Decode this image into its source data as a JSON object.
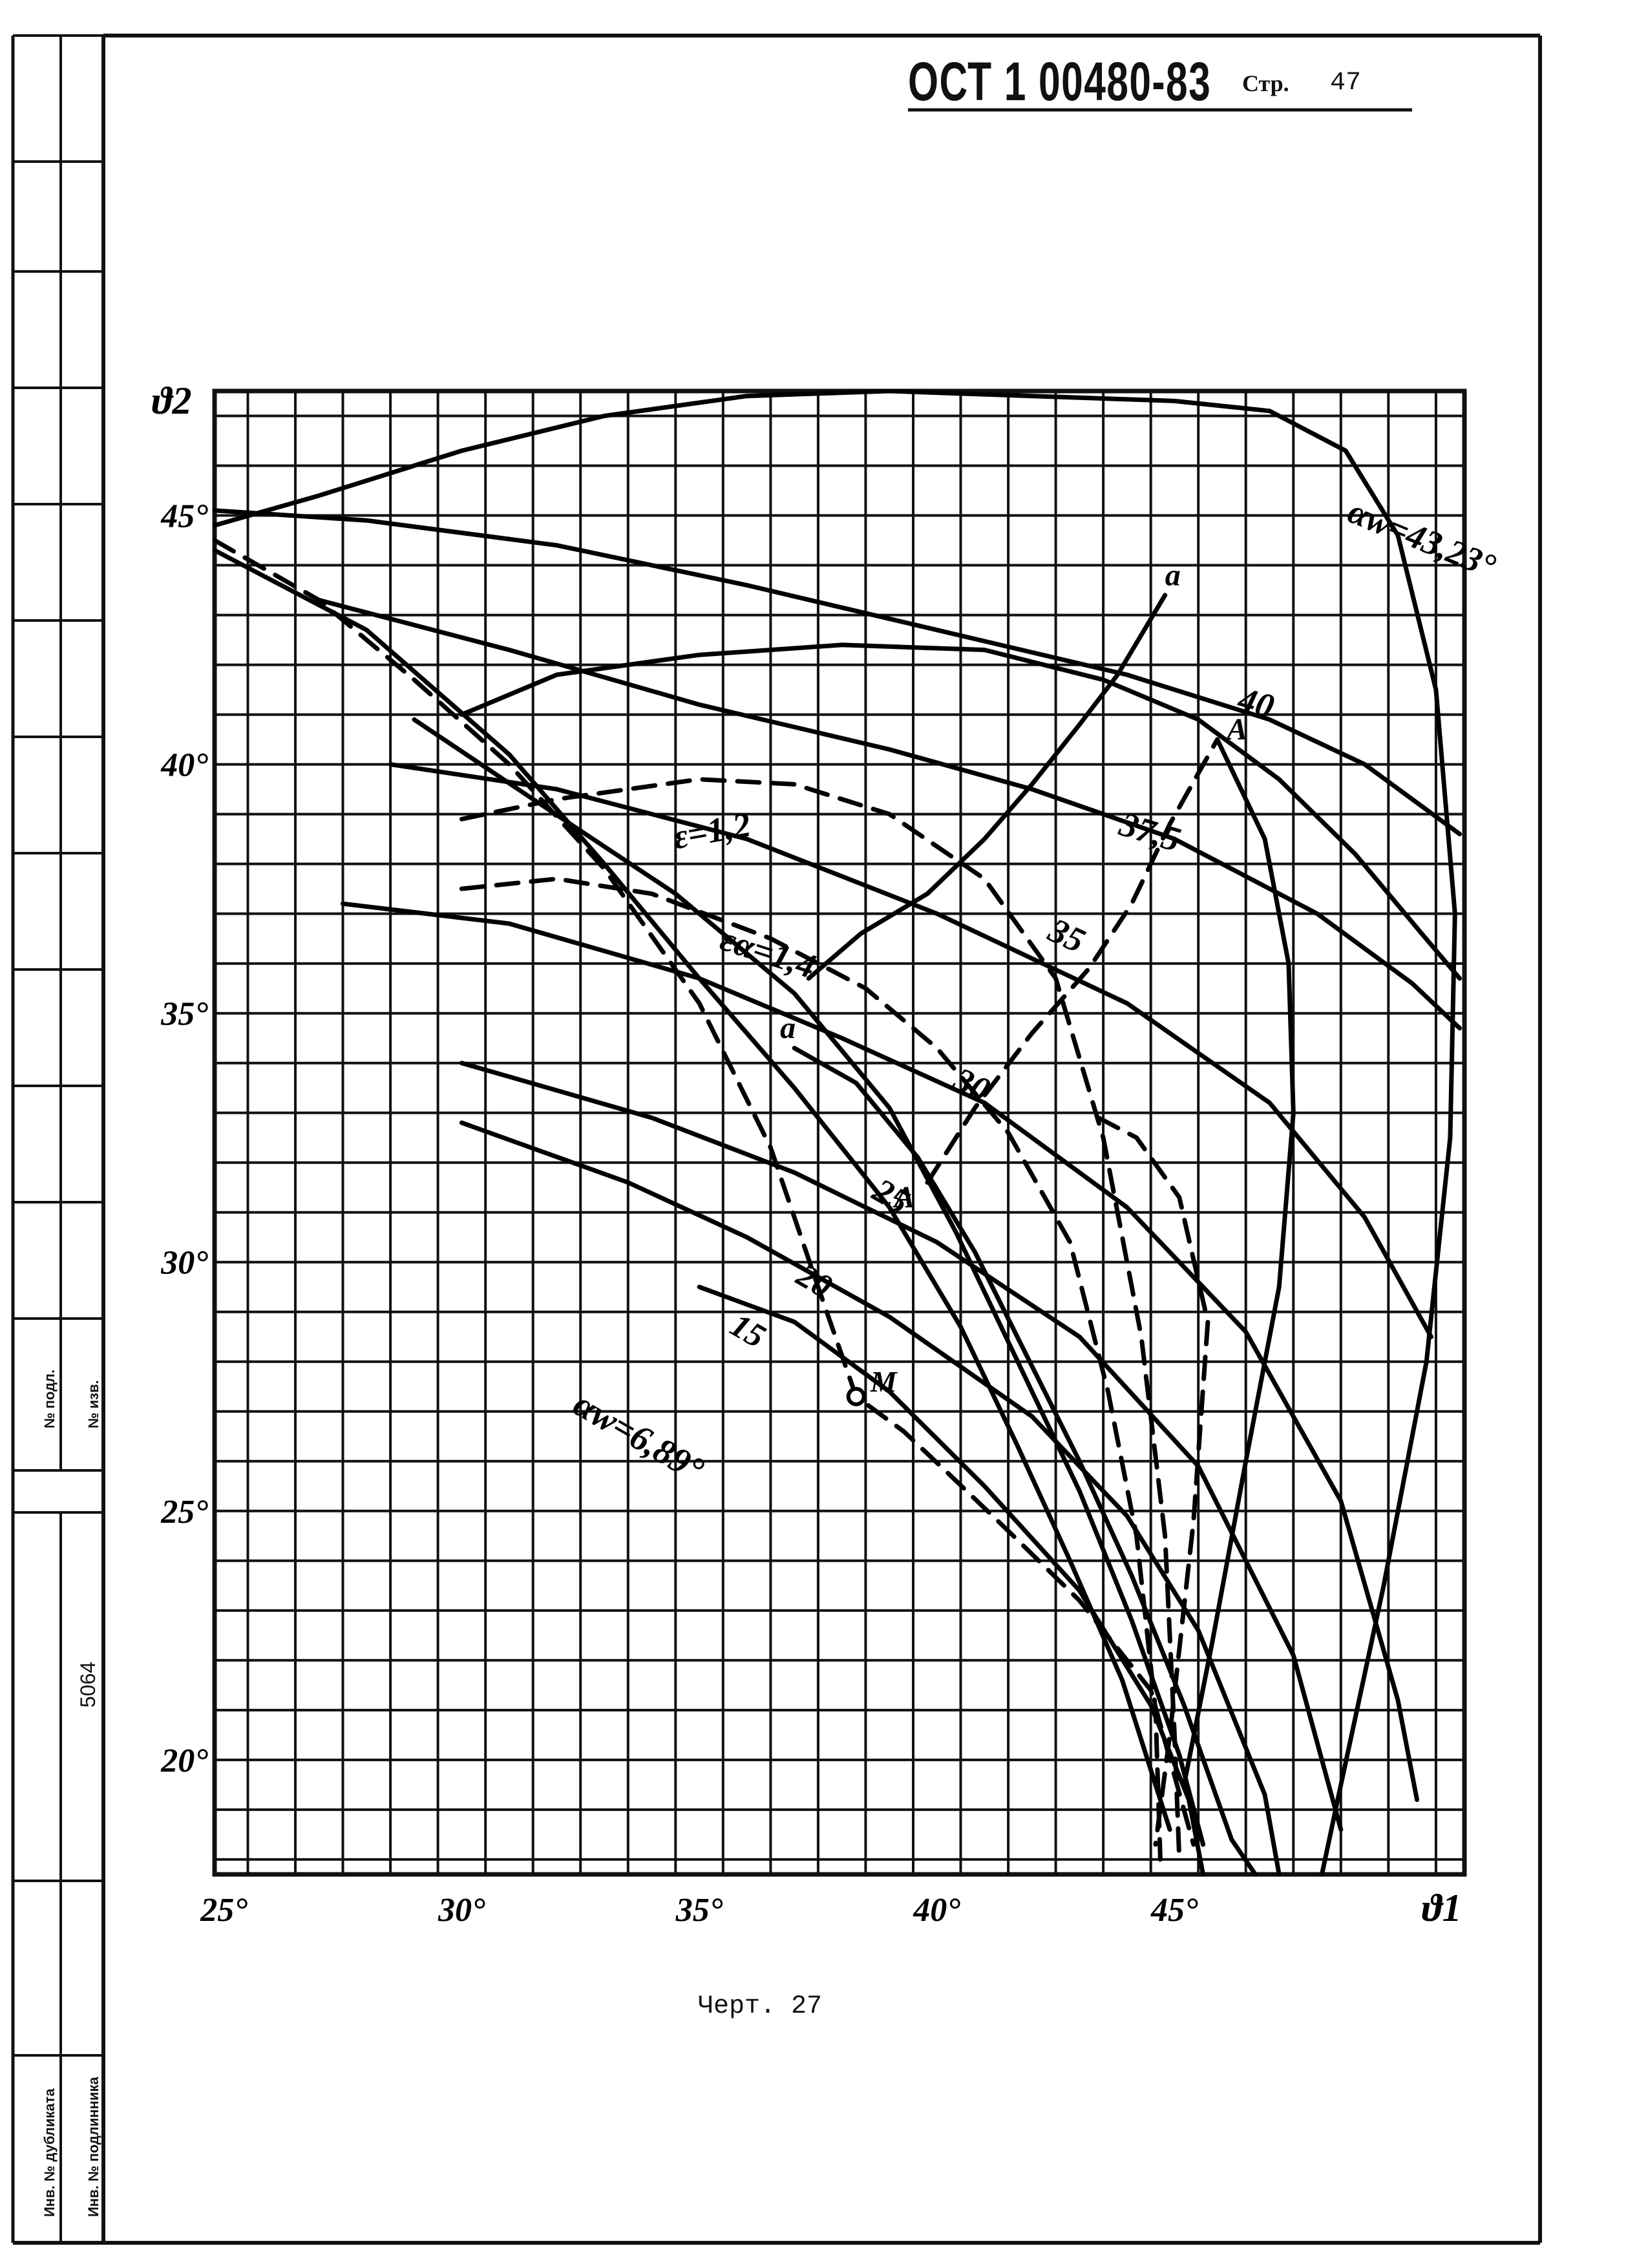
{
  "header": {
    "standard": "ОСТ 1 00480-83",
    "page_label": "Стр.",
    "page_number": "47"
  },
  "caption": "Черт. 27",
  "stamp": {
    "cell_1": "№ подл.",
    "cell_2": "№ изв.",
    "inventory_number": "5064",
    "cell_3": "Инв. № дубликата",
    "cell_4": "Инв. № подлинника"
  },
  "chart_data": {
    "type": "line",
    "xlabel": "ϑ1",
    "ylabel": "ϑ2",
    "xlim": [
      24.8,
      51.1
    ],
    "ylim": [
      17.7,
      47.5
    ],
    "x_ticks": [
      "25°",
      "30°",
      "35°",
      "40°",
      "45°"
    ],
    "y_ticks": [
      "20°",
      "25°",
      "30°",
      "35°",
      "40°",
      "45°"
    ],
    "grid": true,
    "curve_labels": [
      "αw=43,23°",
      "40",
      "37,5",
      "35",
      "30",
      "25",
      "20",
      "15",
      "αw=6,89°",
      "ε=1,2",
      "εα=1,4",
      "a",
      "a",
      "A",
      "A",
      "M"
    ],
    "series": [
      {
        "name": "αw=43,23°",
        "style": "solid",
        "points": [
          [
            24.8,
            44.8
          ],
          [
            27,
            45.4
          ],
          [
            30,
            46.3
          ],
          [
            33,
            47.0
          ],
          [
            36,
            47.4
          ],
          [
            39,
            47.5
          ],
          [
            42,
            47.4
          ],
          [
            45,
            47.3
          ],
          [
            47,
            47.1
          ],
          [
            48.6,
            46.3
          ],
          [
            49.7,
            44.6
          ],
          [
            50.5,
            41.5
          ],
          [
            50.9,
            37.0
          ],
          [
            50.8,
            32.5
          ],
          [
            50.3,
            28.0
          ],
          [
            49.4,
            23.5
          ],
          [
            48.5,
            19.5
          ],
          [
            48.1,
            17.7
          ]
        ]
      },
      {
        "name": "40",
        "style": "solid",
        "points": [
          [
            24.8,
            45.1
          ],
          [
            28,
            44.9
          ],
          [
            32,
            44.4
          ],
          [
            36,
            43.6
          ],
          [
            40,
            42.7
          ],
          [
            44,
            41.8
          ],
          [
            47,
            40.9
          ],
          [
            49,
            40.0
          ],
          [
            51,
            38.6
          ]
        ]
      },
      {
        "name": "37,5",
        "style": "solid",
        "points": [
          [
            30,
            41.0
          ],
          [
            32,
            41.8
          ],
          [
            35,
            42.2
          ],
          [
            38,
            42.4
          ],
          [
            41,
            42.3
          ],
          [
            43.5,
            41.7
          ],
          [
            45.5,
            40.9
          ],
          [
            47.2,
            39.7
          ],
          [
            48.8,
            38.2
          ],
          [
            50.2,
            36.6
          ],
          [
            51,
            35.7
          ]
        ]
      },
      {
        "name": "35",
        "style": "solid",
        "points": [
          [
            27,
            43.3
          ],
          [
            31,
            42.3
          ],
          [
            35,
            41.2
          ],
          [
            39,
            40.3
          ],
          [
            42,
            39.5
          ],
          [
            45,
            38.5
          ],
          [
            48,
            37.0
          ],
          [
            50,
            35.6
          ],
          [
            51,
            34.7
          ]
        ]
      },
      {
        "name": "30",
        "style": "solid",
        "points": [
          [
            28.5,
            40.0
          ],
          [
            32,
            39.5
          ],
          [
            36,
            38.5
          ],
          [
            40,
            37.0
          ],
          [
            44,
            35.2
          ],
          [
            47,
            33.2
          ],
          [
            49,
            30.9
          ],
          [
            50.4,
            28.5
          ]
        ]
      },
      {
        "name": "25",
        "style": "solid",
        "points": [
          [
            27.5,
            37.2
          ],
          [
            31,
            36.8
          ],
          [
            35,
            35.7
          ],
          [
            38,
            34.5
          ],
          [
            41,
            33.2
          ],
          [
            44,
            31.1
          ],
          [
            46.5,
            28.6
          ],
          [
            48.5,
            25.2
          ],
          [
            49.7,
            21.2
          ],
          [
            50.1,
            19.2
          ]
        ]
      },
      {
        "name": "20",
        "style": "solid",
        "points": [
          [
            30,
            34.0
          ],
          [
            34,
            32.9
          ],
          [
            37,
            31.8
          ],
          [
            40,
            30.4
          ],
          [
            43,
            28.5
          ],
          [
            45.5,
            25.9
          ],
          [
            47.5,
            22.1
          ],
          [
            48.5,
            18.6
          ]
        ]
      },
      {
        "name": "15",
        "style": "solid",
        "points": [
          [
            30,
            32.8
          ],
          [
            33.5,
            31.6
          ],
          [
            36,
            30.5
          ],
          [
            39,
            28.9
          ],
          [
            42,
            26.9
          ],
          [
            44,
            24.9
          ],
          [
            45.5,
            22.6
          ],
          [
            46.9,
            19.3
          ],
          [
            47.2,
            17.7
          ]
        ]
      },
      {
        "name": "αw=6,89°",
        "style": "solid",
        "points": [
          [
            35,
            29.5
          ],
          [
            37,
            28.8
          ],
          [
            39,
            27.4
          ],
          [
            41,
            25.5
          ],
          [
            43,
            23.4
          ],
          [
            44.5,
            21.1
          ],
          [
            45.3,
            19.2
          ],
          [
            45.6,
            17.7
          ]
        ]
      },
      {
        "name": "ε=1,2",
        "style": "dashed",
        "points": [
          [
            30,
            38.9
          ],
          [
            32,
            39.3
          ],
          [
            35,
            39.7
          ],
          [
            37,
            39.6
          ],
          [
            39,
            39.0
          ],
          [
            41,
            37.7
          ],
          [
            42.5,
            35.7
          ],
          [
            43.5,
            32.5
          ],
          [
            44.3,
            28.5
          ],
          [
            44.8,
            24.5
          ],
          [
            45.0,
            20.5
          ],
          [
            45.1,
            18.0
          ]
        ]
      },
      {
        "name": "εα=1,4",
        "style": "dashed",
        "points": [
          [
            30,
            37.5
          ],
          [
            32,
            37.7
          ],
          [
            34,
            37.4
          ],
          [
            36.5,
            36.5
          ],
          [
            38.5,
            35.5
          ],
          [
            40,
            34.3
          ],
          [
            41.5,
            32.6
          ],
          [
            42.8,
            30.4
          ],
          [
            43.6,
            27.4
          ],
          [
            44.2,
            24.5
          ],
          [
            44.6,
            21.0
          ],
          [
            44.7,
            18.0
          ]
        ]
      },
      {
        "name": "",
        "style": "dashed",
        "points": [
          [
            24.8,
            44.5
          ],
          [
            27,
            43.3
          ],
          [
            29,
            41.7
          ],
          [
            31,
            40.0
          ],
          [
            33,
            37.9
          ],
          [
            35,
            35.2
          ],
          [
            36.5,
            32.3
          ],
          [
            37.5,
            29.5
          ],
          [
            38.3,
            27.3
          ],
          [
            39.3,
            26.6
          ],
          [
            40.3,
            25.7
          ],
          [
            41.5,
            24.6
          ],
          [
            43,
            23.2
          ],
          [
            44.5,
            21.4
          ],
          [
            45.4,
            18.3
          ]
        ]
      },
      {
        "name": "",
        "style": "solid",
        "points": [
          [
            24.8,
            44.3
          ],
          [
            28,
            42.7
          ],
          [
            31,
            40.2
          ],
          [
            33,
            38.0
          ],
          [
            35,
            35.7
          ],
          [
            37,
            33.5
          ],
          [
            39,
            31.1
          ],
          [
            40.5,
            28.7
          ],
          [
            41.7,
            26.3
          ],
          [
            42.8,
            24.0
          ],
          [
            43.9,
            21.6
          ],
          [
            44.9,
            18.6
          ]
        ]
      },
      {
        "name": "",
        "style": "solid",
        "points": [
          [
            29,
            40.9
          ],
          [
            31.5,
            39.3
          ],
          [
            34.5,
            37.4
          ],
          [
            37,
            35.4
          ],
          [
            39,
            33.1
          ],
          [
            40.4,
            30.6
          ],
          [
            41.7,
            28.0
          ],
          [
            43,
            25.4
          ],
          [
            44.1,
            22.8
          ],
          [
            45.1,
            20.1
          ],
          [
            45.6,
            18.3
          ]
        ]
      },
      {
        "name": "",
        "style": "solid",
        "points": [
          [
            37,
            34.3
          ],
          [
            38.3,
            33.6
          ],
          [
            39.6,
            32.1
          ],
          [
            40.8,
            30.2
          ],
          [
            41.9,
            28.1
          ],
          [
            43,
            26.0
          ],
          [
            44.1,
            23.7
          ],
          [
            45.2,
            21.1
          ],
          [
            46.2,
            18.4
          ],
          [
            46.7,
            17.7
          ]
        ]
      },
      {
        "name": "a",
        "style": "solid",
        "points": [
          [
            37.3,
            35.7
          ],
          [
            38.4,
            36.6
          ],
          [
            39.8,
            37.4
          ],
          [
            41,
            38.5
          ],
          [
            42,
            39.6
          ],
          [
            43,
            40.8
          ],
          [
            43.8,
            41.8
          ],
          [
            44.8,
            43.4
          ]
        ]
      },
      {
        "name": "A",
        "style": "dashed",
        "points": [
          [
            39.8,
            31.6
          ],
          [
            40.8,
            33.1
          ],
          [
            42,
            34.6
          ],
          [
            43.2,
            35.9
          ],
          [
            44.1,
            37.2
          ],
          [
            44.9,
            38.8
          ],
          [
            45.9,
            40.5
          ]
        ]
      },
      {
        "name": "",
        "style": "solid",
        "points": [
          [
            45.9,
            40.5
          ],
          [
            46.9,
            38.5
          ],
          [
            47.4,
            36.0
          ],
          [
            47.5,
            33.0
          ],
          [
            47.2,
            29.5
          ],
          [
            46.5,
            26.0
          ],
          [
            45.8,
            22.4
          ],
          [
            45.2,
            19.5
          ]
        ]
      },
      {
        "name": "",
        "style": "dashed",
        "points": [
          [
            43.4,
            32.9
          ],
          [
            44.2,
            32.5
          ],
          [
            45.1,
            31.3
          ],
          [
            45.7,
            28.8
          ],
          [
            45.4,
            24.8
          ],
          [
            44.9,
            20.5
          ],
          [
            44.6,
            18.3
          ]
        ]
      }
    ],
    "points": [
      {
        "label": "M",
        "x": 38.3,
        "y": 27.3
      }
    ]
  }
}
